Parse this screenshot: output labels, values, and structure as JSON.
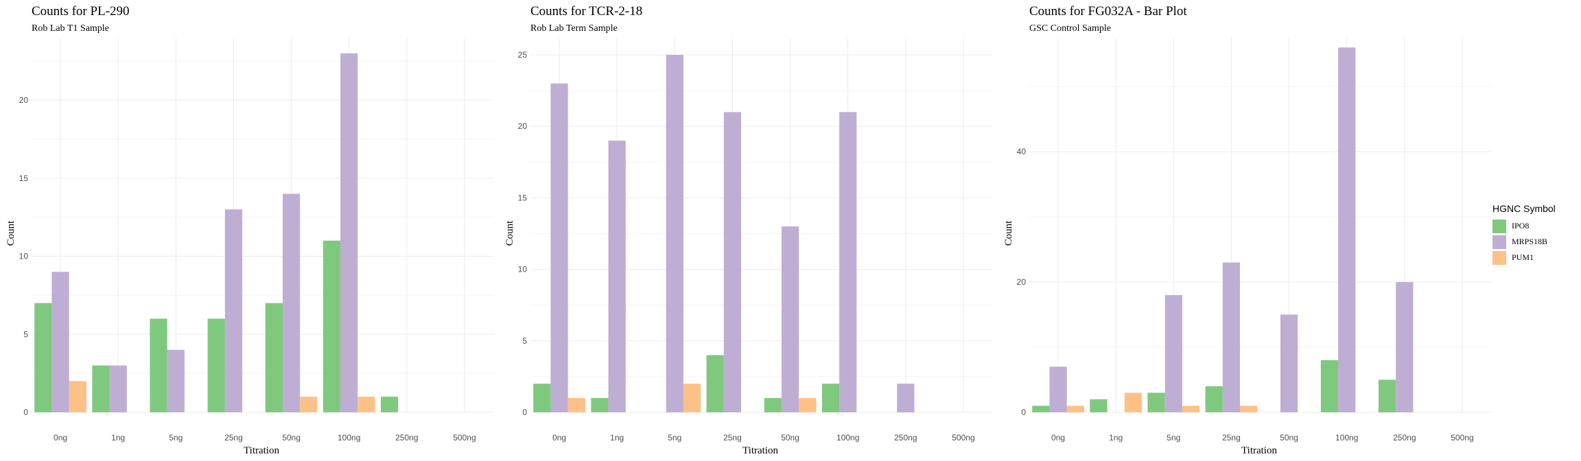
{
  "legend": {
    "title": "HGNC Symbol",
    "entries": [
      {
        "label": "IPO8",
        "color": "#7fc97f"
      },
      {
        "label": "MRPS18B",
        "color": "#beaed4"
      },
      {
        "label": "PUM1",
        "color": "#fdc086"
      }
    ]
  },
  "chart_data": [
    {
      "type": "bar",
      "title": "Counts for PL-290",
      "subtitle": "Rob Lab T1 Sample",
      "xlabel": "Titration",
      "ylabel": "Count",
      "categories": [
        "0ng",
        "1ng",
        "5ng",
        "25ng",
        "50ng",
        "100ng",
        "250ng",
        "500ng"
      ],
      "ylim": [
        0,
        24
      ],
      "yticks": [
        0,
        5,
        10,
        15,
        20
      ],
      "grid": true,
      "series": [
        {
          "name": "IPO8",
          "values": [
            7,
            3,
            6,
            6,
            7,
            11,
            1,
            0
          ]
        },
        {
          "name": "MRPS18B",
          "values": [
            9,
            3,
            4,
            13,
            14,
            23,
            0,
            0
          ]
        },
        {
          "name": "PUM1",
          "values": [
            2,
            0,
            0,
            0,
            1,
            1,
            0,
            0
          ]
        }
      ]
    },
    {
      "type": "bar",
      "title": "Counts for TCR-2-18",
      "subtitle": "Rob Lab Term Sample",
      "xlabel": "Titration",
      "ylabel": "Count",
      "categories": [
        "0ng",
        "1ng",
        "5ng",
        "25ng",
        "50ng",
        "100ng",
        "250ng",
        "500ng"
      ],
      "ylim": [
        0,
        26.2
      ],
      "yticks": [
        0,
        5,
        10,
        15,
        20,
        25
      ],
      "grid": true,
      "series": [
        {
          "name": "IPO8",
          "values": [
            2,
            1,
            0,
            4,
            1,
            2,
            0,
            0
          ]
        },
        {
          "name": "MRPS18B",
          "values": [
            23,
            19,
            25,
            21,
            13,
            21,
            2,
            0
          ]
        },
        {
          "name": "PUM1",
          "values": [
            1,
            0,
            2,
            0,
            1,
            0,
            0,
            0
          ]
        }
      ]
    },
    {
      "type": "bar",
      "title": "Counts for FG032A - Bar Plot",
      "subtitle": "GSC Control Sample",
      "xlabel": "Titration",
      "ylabel": "Count",
      "categories": [
        "0ng",
        "1ng",
        "5ng",
        "25ng",
        "50ng",
        "100ng",
        "250ng",
        "500ng"
      ],
      "ylim": [
        0,
        57.5
      ],
      "yticks": [
        0,
        20,
        40
      ],
      "grid": true,
      "series": [
        {
          "name": "IPO8",
          "values": [
            1,
            2,
            3,
            4,
            0,
            8,
            5,
            0
          ]
        },
        {
          "name": "MRPS18B",
          "values": [
            7,
            0,
            18,
            23,
            15,
            56,
            20,
            0
          ]
        },
        {
          "name": "PUM1",
          "values": [
            1,
            3,
            1,
            1,
            0,
            0,
            0,
            0
          ]
        }
      ]
    }
  ]
}
